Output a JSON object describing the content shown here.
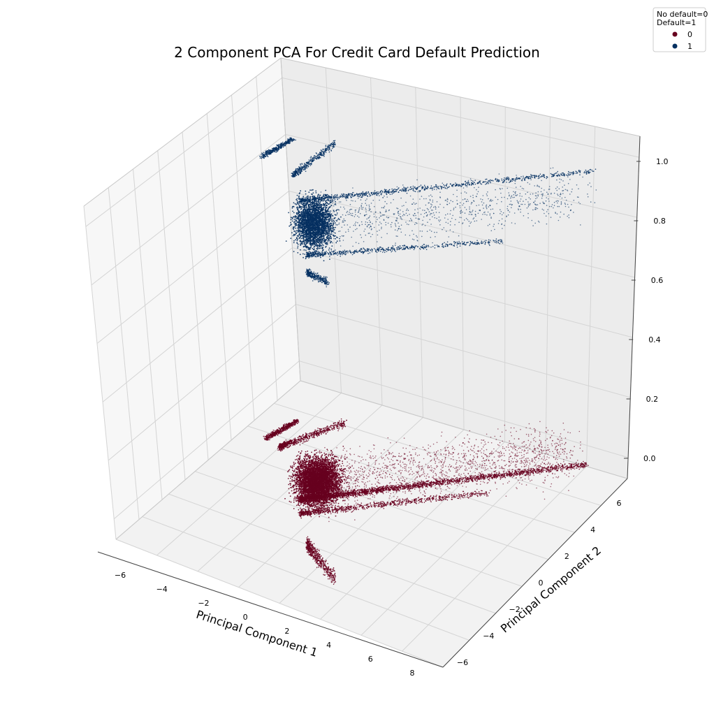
{
  "chart_data": {
    "type": "scatter",
    "projection": "3d",
    "title": "2 Component PCA For Credit Card Default Prediction",
    "xlabel": "Principal Component 1",
    "ylabel": "Principal Component 2",
    "zlabel": "",
    "x_ticks": [
      "−6",
      "−4",
      "−2",
      "0",
      "2",
      "4",
      "6",
      "8"
    ],
    "y_ticks": [
      "−6",
      "−4",
      "−2",
      "0",
      "2",
      "4",
      "6"
    ],
    "z_ticks": [
      "0.0",
      "0.2",
      "0.4",
      "0.6",
      "0.8",
      "1.0"
    ],
    "grid": true,
    "legend": {
      "title_line1": "No default=0",
      "title_line2": "Default=1",
      "placement": "top-right",
      "entries": [
        {
          "label": "0",
          "color": "#67001f"
        },
        {
          "label": "1",
          "color": "#053061"
        }
      ]
    },
    "series": [
      {
        "label": "0",
        "z": 0,
        "color": "#67001f"
      },
      {
        "label": "1",
        "z": 1,
        "color": "#053061"
      }
    ]
  }
}
